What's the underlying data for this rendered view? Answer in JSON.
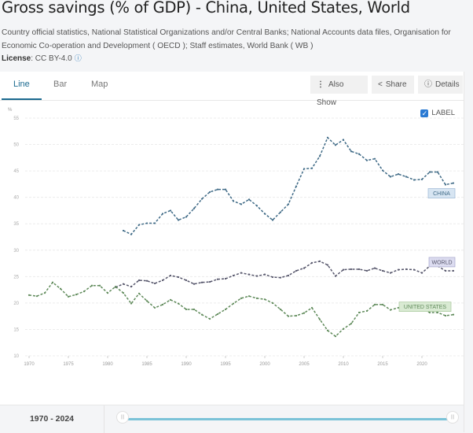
{
  "header": {
    "title": "Gross savings (% of GDP) - China, United States, World",
    "source": "Country official statistics, National Statistical Organizations and/or Central Banks; National Accounts data files, Organisation for Economic Co-operation and Development ( OECD ); Staff estimates, World Bank ( WB )",
    "license_label": "License",
    "license_value": ": CC BY-4.0",
    "license_info_icon": "info-circle-icon"
  },
  "tabs": [
    {
      "label": "Line",
      "active": true
    },
    {
      "label": "Bar",
      "active": false
    },
    {
      "label": "Map",
      "active": false
    }
  ],
  "toolbar": {
    "also_show": "Also Show",
    "share": "Share",
    "details": "Details"
  },
  "label_toggle": {
    "label": "LABEL",
    "checked": true
  },
  "range": {
    "label": "1970 - 2024",
    "start": 1970,
    "end": 2024
  },
  "colors": {
    "china": "#3f6a86",
    "united_states": "#5f8a5a",
    "world": "#55556a",
    "china_label_bg": "#d7e5f2",
    "us_label_bg": "#d9ead3",
    "world_label_bg": "#dcdcf0",
    "accent": "#1b6a8f",
    "slider": "#7bc3d8"
  },
  "chart_data": {
    "type": "line",
    "title": "Gross savings (% of GDP) - China, United States, World",
    "ylabel": "%",
    "xlabel": "",
    "ylim": [
      10,
      55
    ],
    "yticks": [
      10,
      15,
      20,
      25,
      30,
      35,
      40,
      45,
      50,
      55
    ],
    "xlim": [
      1970,
      2024
    ],
    "xticks": [
      1970,
      1975,
      1980,
      1985,
      1990,
      1995,
      2000,
      2005,
      2010,
      2015,
      2020
    ],
    "grid": true,
    "series": [
      {
        "name": "CHINA",
        "key": "china",
        "start_year": 1982,
        "values": [
          33.7,
          33.0,
          34.8,
          35.1,
          35.1,
          36.9,
          37.5,
          35.7,
          36.3,
          37.9,
          39.7,
          41.0,
          41.5,
          41.5,
          39.3,
          38.7,
          39.6,
          38.4,
          36.9,
          35.7,
          37.2,
          38.7,
          42.1,
          45.4,
          45.5,
          47.8,
          51.3,
          49.9,
          50.9,
          48.7,
          48.2,
          47.0,
          47.3,
          45.1,
          43.9,
          44.4,
          43.9,
          43.3,
          43.4,
          44.8,
          44.8,
          42.4,
          42.7
        ]
      },
      {
        "name": "WORLD",
        "key": "world",
        "start_year": 1981,
        "values": [
          23.0,
          23.6,
          23.1,
          24.3,
          24.2,
          23.7,
          24.3,
          25.2,
          24.9,
          24.3,
          23.6,
          23.9,
          24.0,
          24.5,
          24.6,
          25.2,
          25.7,
          25.4,
          25.1,
          25.4,
          24.9,
          24.8,
          25.2,
          26.1,
          26.6,
          27.6,
          27.9,
          27.2,
          25.1,
          26.3,
          26.4,
          26.4,
          26.1,
          26.6,
          26.1,
          25.7,
          26.3,
          26.4,
          26.3,
          25.7,
          27.0,
          27.0,
          26.1,
          26.1
        ]
      },
      {
        "name": "UNITED STATES",
        "key": "united_states",
        "start_year": 1970,
        "values": [
          21.5,
          21.3,
          21.9,
          23.9,
          22.7,
          21.2,
          21.6,
          22.2,
          23.3,
          23.3,
          21.9,
          23.1,
          21.9,
          19.9,
          21.8,
          20.4,
          19.1,
          19.7,
          20.6,
          19.9,
          18.8,
          18.8,
          17.8,
          17.0,
          17.9,
          18.8,
          19.9,
          20.9,
          21.3,
          20.9,
          20.7,
          20.0,
          18.8,
          17.5,
          17.6,
          18.1,
          19.1,
          16.9,
          14.8,
          13.7,
          15.1,
          16.1,
          18.2,
          18.5,
          19.7,
          19.7,
          18.7,
          19.1,
          19.1,
          19.1,
          18.8,
          18.2,
          18.2,
          17.6,
          17.8
        ]
      }
    ]
  }
}
